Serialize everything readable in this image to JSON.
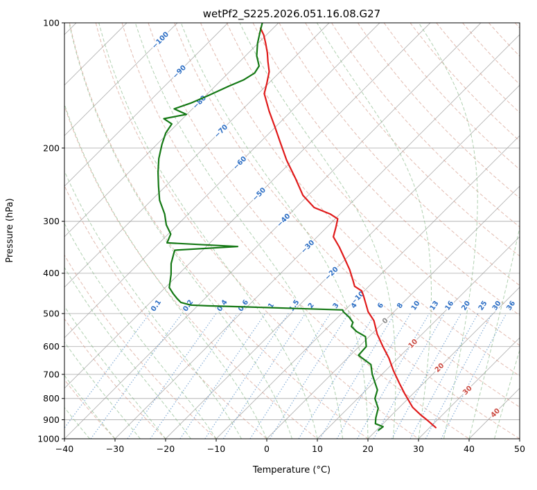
{
  "chart_data": {
    "type": "skewt-log-p",
    "title": "wetPf2_S225.2026.051.16.08.G27",
    "xlabel": "Temperature (°C)",
    "ylabel": "Pressure (hPa)",
    "xlim": [
      -40,
      50
    ],
    "pressure_lim": [
      100,
      1000
    ],
    "x_ticks": [
      -40,
      -30,
      -20,
      -10,
      0,
      10,
      20,
      30,
      40,
      50
    ],
    "pressure_ticks": [
      100,
      200,
      300,
      400,
      500,
      600,
      700,
      800,
      900,
      1000
    ],
    "skew_deg": 45,
    "grid": true,
    "isotherms": {
      "t_min": -120,
      "t_max": 50,
      "step": 10,
      "labels": [
        {
          "t": -100,
          "p": 110
        },
        {
          "t": -90,
          "p": 131
        },
        {
          "t": -80,
          "p": 155
        },
        {
          "t": -70,
          "p": 182
        },
        {
          "t": -60,
          "p": 217
        },
        {
          "t": -50,
          "p": 258
        },
        {
          "t": -40,
          "p": 298
        },
        {
          "t": -30,
          "p": 345
        },
        {
          "t": -20,
          "p": 400
        },
        {
          "t": -10,
          "p": 458
        },
        {
          "t": 0,
          "p": 520
        },
        {
          "t": 10,
          "p": 590
        },
        {
          "t": 20,
          "p": 674
        },
        {
          "t": 30,
          "p": 764
        },
        {
          "t": 40,
          "p": 866
        }
      ]
    },
    "dry_adiabats": {
      "theta_min": -40,
      "theta_max": 200,
      "step": 10
    },
    "moist_adiabats": {
      "t_start_min": -40,
      "t_start_max": 50,
      "step": 5
    },
    "mixing_ratio_lines": {
      "values_g_kg": [
        0.1,
        0.2,
        0.4,
        0.6,
        1,
        1.5,
        2,
        3,
        4,
        6,
        8,
        10,
        13,
        16,
        20,
        25,
        30,
        36
      ],
      "p_bottom": 1000,
      "p_top": 500,
      "label_p": 478
    },
    "series": [
      {
        "name": "temperature",
        "color": "#e01a1a",
        "points": [
          [
            103,
            -82.5
          ],
          [
            107,
            -80.5
          ],
          [
            112,
            -78.5
          ],
          [
            118,
            -76.3
          ],
          [
            124,
            -74.4
          ],
          [
            131,
            -72.2
          ],
          [
            140,
            -70.3
          ],
          [
            148,
            -68.8
          ],
          [
            163,
            -64.4
          ],
          [
            178,
            -60.1
          ],
          [
            193,
            -56.2
          ],
          [
            214,
            -51.2
          ],
          [
            236,
            -46.0
          ],
          [
            260,
            -41.0
          ],
          [
            278,
            -36.4
          ],
          [
            288,
            -32.0
          ],
          [
            296,
            -29.5
          ],
          [
            310,
            -28.2
          ],
          [
            327,
            -26.8
          ],
          [
            346,
            -23.6
          ],
          [
            370,
            -20.1
          ],
          [
            392,
            -17.1
          ],
          [
            417,
            -14.2
          ],
          [
            430,
            -12.8
          ],
          [
            441,
            -10.5
          ],
          [
            452,
            -9.3
          ],
          [
            472,
            -7.3
          ],
          [
            495,
            -5.1
          ],
          [
            520,
            -2.2
          ],
          [
            560,
            1.1
          ],
          [
            600,
            4.7
          ],
          [
            640,
            8.2
          ],
          [
            685,
            11.5
          ],
          [
            735,
            15.2
          ],
          [
            780,
            18.4
          ],
          [
            840,
            22.6
          ],
          [
            875,
            25.6
          ],
          [
            905,
            28.3
          ],
          [
            940,
            31.2
          ]
        ]
      },
      {
        "name": "dewpoint",
        "color": "#147814",
        "points": [
          [
            100,
            -83.2
          ],
          [
            105,
            -81.9
          ],
          [
            112,
            -80.1
          ],
          [
            120,
            -77.8
          ],
          [
            127,
            -75.3
          ],
          [
            132,
            -74.8
          ],
          [
            137,
            -75.6
          ],
          [
            142,
            -77.3
          ],
          [
            150,
            -79.6
          ],
          [
            156,
            -81.5
          ],
          [
            161,
            -83.6
          ],
          [
            166,
            -80.1
          ],
          [
            170,
            -83.7
          ],
          [
            175,
            -81.1
          ],
          [
            184,
            -80.5
          ],
          [
            196,
            -79.0
          ],
          [
            212,
            -76.8
          ],
          [
            229,
            -74.2
          ],
          [
            247,
            -71.4
          ],
          [
            267,
            -68.4
          ],
          [
            288,
            -64.7
          ],
          [
            306,
            -62.2
          ],
          [
            322,
            -59.5
          ],
          [
            338,
            -58.5
          ],
          [
            345,
            -43.8
          ],
          [
            352,
            -55.5
          ],
          [
            358,
            -55.1
          ],
          [
            379,
            -53.6
          ],
          [
            402,
            -51.5
          ],
          [
            433,
            -49.2
          ],
          [
            448,
            -47.2
          ],
          [
            460,
            -45.5
          ],
          [
            470,
            -44.0
          ],
          [
            477,
            -41.5
          ],
          [
            479,
            -38.0
          ],
          [
            482,
            -30.0
          ],
          [
            486,
            -20.0
          ],
          [
            490,
            -10.5
          ],
          [
            495,
            -10.0
          ],
          [
            510,
            -7.8
          ],
          [
            525,
            -6.0
          ],
          [
            537,
            -5.5
          ],
          [
            552,
            -3.5
          ],
          [
            568,
            -0.7
          ],
          [
            600,
            1.4
          ],
          [
            630,
            1.6
          ],
          [
            663,
            5.9
          ],
          [
            700,
            8.1
          ],
          [
            727,
            9.9
          ],
          [
            763,
            12.2
          ],
          [
            800,
            13.4
          ],
          [
            845,
            16.0
          ],
          [
            890,
            17.4
          ],
          [
            920,
            18.5
          ],
          [
            935,
            20.6
          ],
          [
            953,
            20.4
          ]
        ]
      }
    ],
    "colors": {
      "grid": "#9a9a9a",
      "isotherm": "#9a9a9a",
      "dry_adiabat": "#cf8d7c",
      "moist_adiabat": "#86b786",
      "mixing_ratio": "#6f9fd0",
      "cold_label": "#2e6fc4",
      "warm_label": "#cb4b42",
      "zero_label": "#8a8a8a",
      "axis_text": "#000000"
    }
  }
}
